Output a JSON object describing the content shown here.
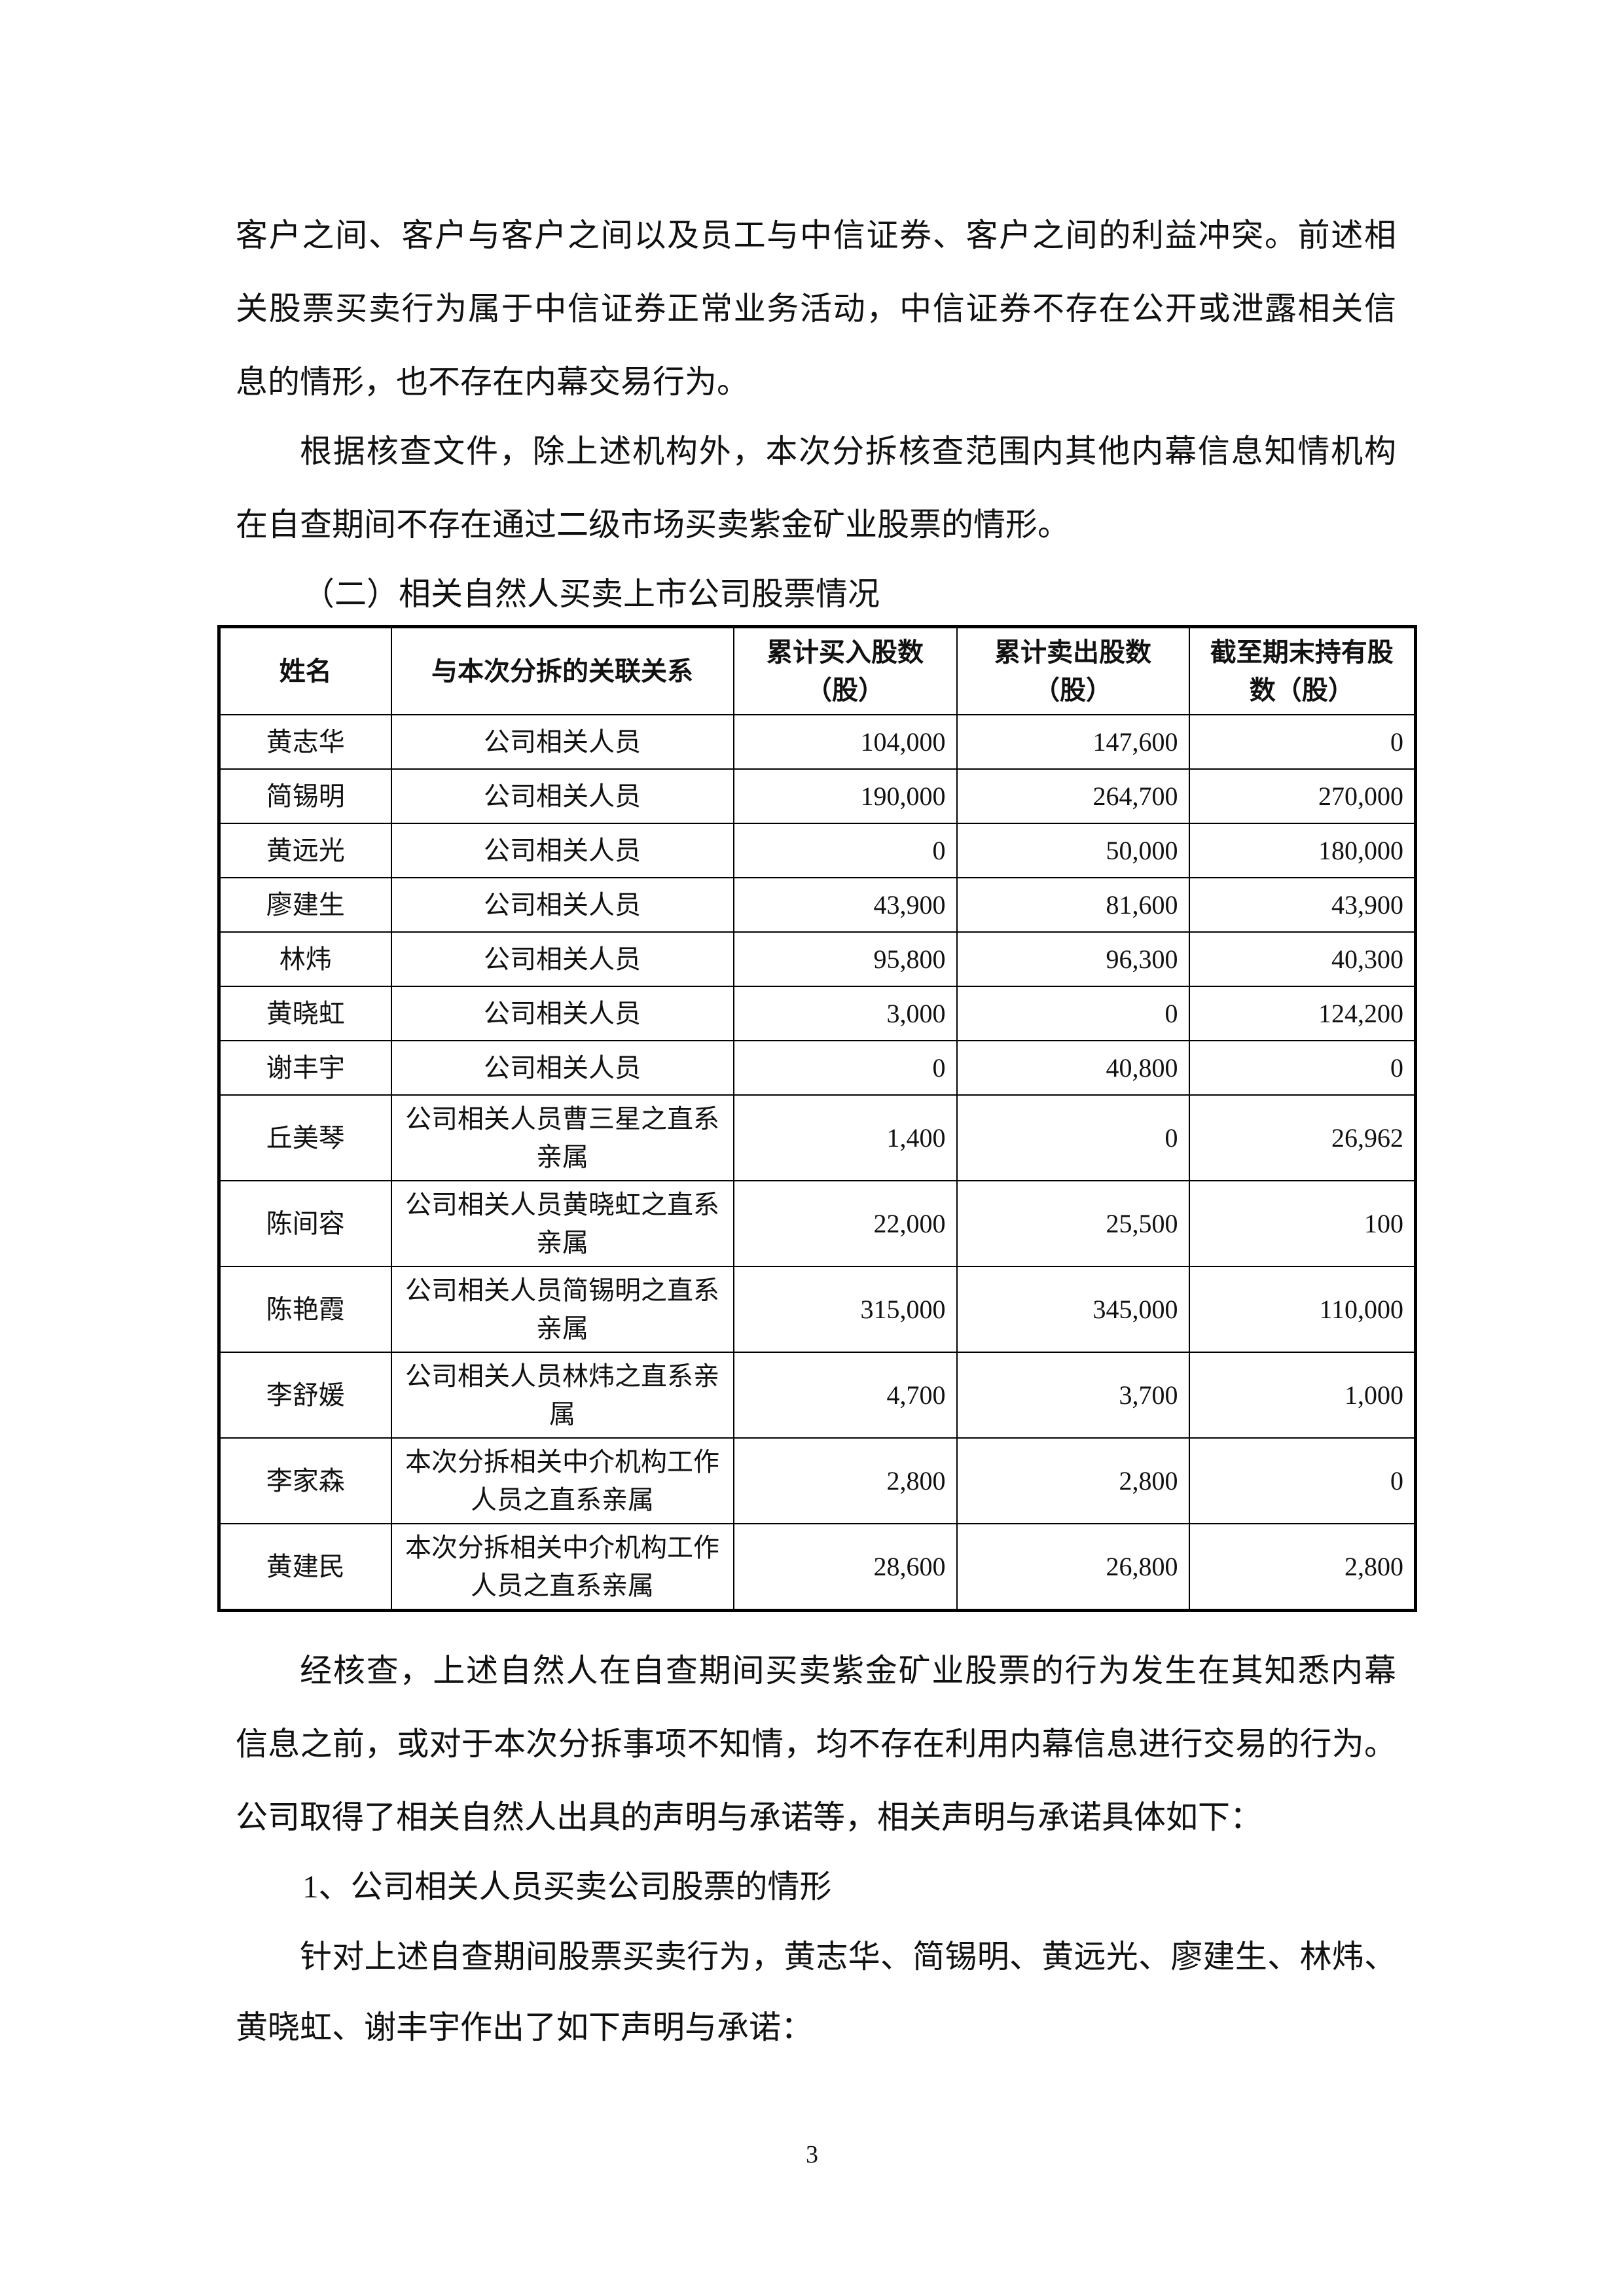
{
  "paragraphs_top": [
    "客户之间、客户与客户之间以及员工与中信证券、客户之间的利益冲突。前述相",
    "关股票买卖行为属于中信证券正常业务活动，中信证券不存在公开或泄露相关信",
    "息的情形，也不存在内幕交易行为。",
    "根据核查文件，除上述机构外，本次分拆核查范围内其他内幕信息知情机构",
    "在自查期间不存在通过二级市场买卖紫金矿业股票的情形。"
  ],
  "section_heading": "（二）相关自然人买卖上市公司股票情况",
  "table": {
    "headers": [
      "姓名",
      "与本次分拆的关联关系",
      "累计买入股数（股）",
      "累计卖出股数（股）",
      "截至期末持有股数（股）"
    ],
    "rows": [
      [
        "黄志华",
        "公司相关人员",
        "104,000",
        "147,600",
        "0"
      ],
      [
        "简锡明",
        "公司相关人员",
        "190,000",
        "264,700",
        "270,000"
      ],
      [
        "黄远光",
        "公司相关人员",
        "0",
        "50,000",
        "180,000"
      ],
      [
        "廖建生",
        "公司相关人员",
        "43,900",
        "81,600",
        "43,900"
      ],
      [
        "林炜",
        "公司相关人员",
        "95,800",
        "96,300",
        "40,300"
      ],
      [
        "黄晓虹",
        "公司相关人员",
        "3,000",
        "0",
        "124,200"
      ],
      [
        "谢丰宇",
        "公司相关人员",
        "0",
        "40,800",
        "0"
      ],
      [
        "丘美琴",
        "公司相关人员曹三星之直系亲属",
        "1,400",
        "0",
        "26,962"
      ],
      [
        "陈间容",
        "公司相关人员黄晓虹之直系亲属",
        "22,000",
        "25,500",
        "100"
      ],
      [
        "陈艳霞",
        "公司相关人员简锡明之直系亲属",
        "315,000",
        "345,000",
        "110,000"
      ],
      [
        "李舒媛",
        "公司相关人员林炜之直系亲属",
        "4,700",
        "3,700",
        "1,000"
      ],
      [
        "李家森",
        "本次分拆相关中介机构工作人员之直系亲属",
        "2,800",
        "2,800",
        "0"
      ],
      [
        "黄建民",
        "本次分拆相关中介机构工作人员之直系亲属",
        "28,600",
        "26,800",
        "2,800"
      ]
    ]
  },
  "paragraphs_bottom": [
    "经核查，上述自然人在自查期间买卖紫金矿业股票的行为发生在其知悉内幕",
    "信息之前，或对于本次分拆事项不知情，均不存在利用内幕信息进行交易的行为。",
    "公司取得了相关自然人出具的声明与承诺等，相关声明与承诺具体如下：",
    "1、公司相关人员买卖公司股票的情形",
    "针对上述自查期间股票买卖行为，黄志华、简锡明、黄远光、廖建生、林炜、",
    "黄晓虹、谢丰宇作出了如下声明与承诺："
  ],
  "page_number": "3"
}
